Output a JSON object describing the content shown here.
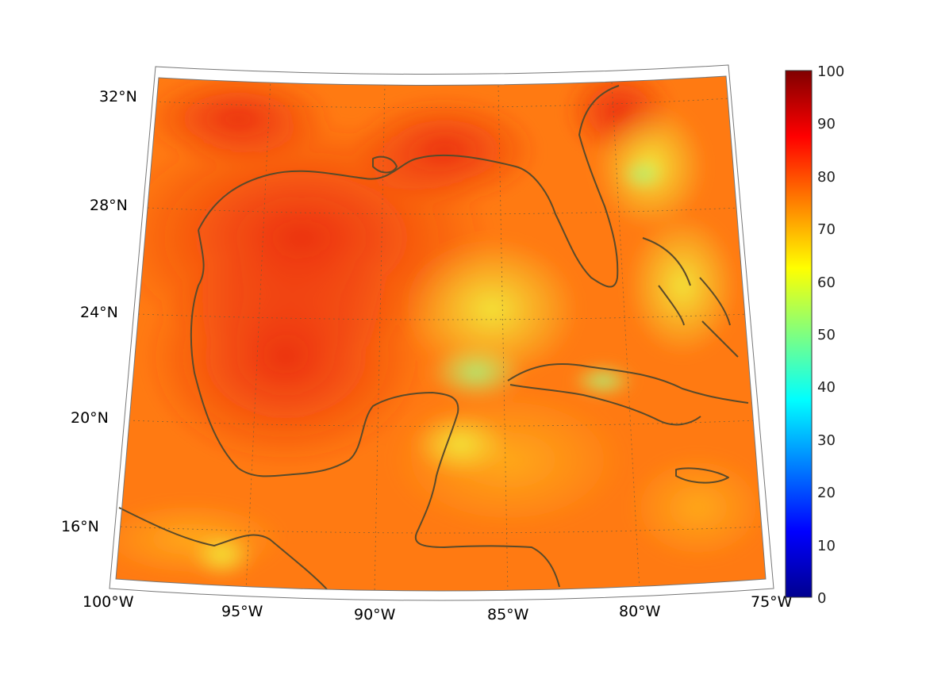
{
  "map": {
    "region": "Gulf of Mexico and Caribbean",
    "lon_labels": [
      "100°W",
      "95°W",
      "90°W",
      "85°W",
      "80°W",
      "75°W"
    ],
    "lat_labels": [
      "32°N",
      "28°N",
      "24°N",
      "20°N",
      "16°N"
    ],
    "lon_values": [
      -100,
      -95,
      -90,
      -85,
      -80,
      -75
    ],
    "lat_values": [
      32,
      28,
      24,
      20,
      16
    ],
    "field_colormap": "jet",
    "coastline_color": "#5a4a2a",
    "gridline_style": "dotted"
  },
  "colorbar": {
    "ticks": [
      "100",
      "90",
      "80",
      "70",
      "60",
      "50",
      "40",
      "30",
      "20",
      "10",
      "0"
    ],
    "min": 0,
    "max": 100,
    "position": "right"
  }
}
